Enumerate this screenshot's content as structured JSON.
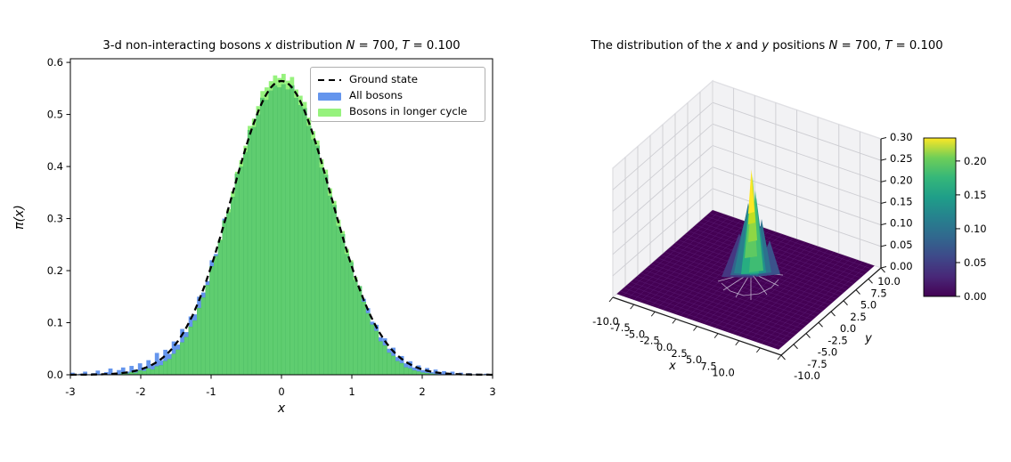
{
  "figure": {
    "background": "#ffffff"
  },
  "chart_data": [
    {
      "type": "bar",
      "subtype": "histogram-with-line",
      "title_segments": [
        {
          "text": "3-d non-interacting bosons ",
          "italic": false
        },
        {
          "text": "x",
          "italic": true
        },
        {
          "text": " distribution ",
          "italic": false
        },
        {
          "text": "N",
          "italic": true
        },
        {
          "text": " = 700, ",
          "italic": false
        },
        {
          "text": "T",
          "italic": true
        },
        {
          "text": " = 0.100",
          "italic": false
        }
      ],
      "xlabel": "x",
      "ylabel": "π(x)",
      "xlim": [
        -3,
        3
      ],
      "ylim": [
        0,
        0.607
      ],
      "xticks": [
        "-3",
        "-2",
        "-1",
        "0",
        "1",
        "2",
        "3"
      ],
      "yticks": [
        "0.0",
        "0.1",
        "0.2",
        "0.3",
        "0.4",
        "0.5",
        "0.6"
      ],
      "bin_start": -3.0,
      "bin_width": 0.06,
      "series": [
        {
          "name": "All bosons",
          "color": "#6495ED",
          "values": [
            0.004,
            0.001,
            0.002,
            0.006,
            0.001,
            0.003,
            0.008,
            0.002,
            0.005,
            0.012,
            0.003,
            0.009,
            0.014,
            0.006,
            0.017,
            0.01,
            0.022,
            0.014,
            0.028,
            0.02,
            0.042,
            0.028,
            0.048,
            0.04,
            0.064,
            0.058,
            0.088,
            0.082,
            0.112,
            0.116,
            0.15,
            0.158,
            0.18,
            0.22,
            0.232,
            0.258,
            0.3,
            0.312,
            0.342,
            0.386,
            0.4,
            0.428,
            0.47,
            0.476,
            0.5,
            0.532,
            0.528,
            0.546,
            0.556,
            0.552,
            0.558,
            0.548,
            0.556,
            0.532,
            0.518,
            0.512,
            0.478,
            0.452,
            0.44,
            0.398,
            0.384,
            0.344,
            0.326,
            0.286,
            0.27,
            0.232,
            0.216,
            0.182,
            0.17,
            0.146,
            0.128,
            0.102,
            0.096,
            0.072,
            0.07,
            0.05,
            0.052,
            0.034,
            0.036,
            0.022,
            0.026,
            0.014,
            0.018,
            0.009,
            0.013,
            0.005,
            0.01,
            0.003,
            0.007,
            0.002,
            0.006,
            0.001,
            0.004,
            0.001,
            0.003,
            0.001,
            0.002,
            0.001,
            0.002,
            0.001
          ]
        },
        {
          "name": "Bosons in longer cycle",
          "color_pure": "#96F27D",
          "color_over_blue": "#5FCD70",
          "values": [
            0,
            0,
            0,
            0,
            0,
            0,
            0,
            0,
            0,
            0,
            0,
            0,
            0.004,
            0.002,
            0.005,
            0.004,
            0.008,
            0.007,
            0.012,
            0.01,
            0.016,
            0.018,
            0.026,
            0.03,
            0.04,
            0.048,
            0.062,
            0.072,
            0.092,
            0.104,
            0.128,
            0.148,
            0.172,
            0.208,
            0.228,
            0.26,
            0.296,
            0.318,
            0.352,
            0.39,
            0.412,
            0.44,
            0.478,
            0.492,
            0.516,
            0.545,
            0.552,
            0.564,
            0.575,
            0.57,
            0.578,
            0.565,
            0.572,
            0.548,
            0.536,
            0.524,
            0.494,
            0.468,
            0.45,
            0.414,
            0.394,
            0.358,
            0.334,
            0.298,
            0.276,
            0.242,
            0.22,
            0.188,
            0.17,
            0.14,
            0.118,
            0.096,
            0.084,
            0.064,
            0.056,
            0.042,
            0.036,
            0.026,
            0.022,
            0.014,
            0.012,
            0.008,
            0.006,
            0.004,
            0.003,
            0.002,
            0.001,
            0,
            0,
            0,
            0,
            0,
            0,
            0,
            0,
            0,
            0,
            0,
            0,
            0
          ]
        }
      ],
      "curve": {
        "name": "Ground state",
        "color": "#000000",
        "style": "dashed",
        "shape": "gaussian",
        "peak": 0.5642,
        "sigma": 0.7071
      },
      "legend": [
        {
          "label": "Ground state",
          "sample": "dashed-black-line"
        },
        {
          "label": "All bosons",
          "sample": "blue-patch"
        },
        {
          "label": "Bosons in longer cycle",
          "sample": "green-patch"
        }
      ]
    },
    {
      "type": "surface",
      "title_segments": [
        {
          "text": "The distribution of the ",
          "italic": false
        },
        {
          "text": "x",
          "italic": true
        },
        {
          "text": " and ",
          "italic": false
        },
        {
          "text": "y",
          "italic": true
        },
        {
          "text": " positions ",
          "italic": false
        },
        {
          "text": "N",
          "italic": true
        },
        {
          "text": " = 700, ",
          "italic": false
        },
        {
          "text": "T",
          "italic": true
        },
        {
          "text": " = 0.100",
          "italic": false
        }
      ],
      "xlabel": "x",
      "ylabel": "y",
      "x_range": [
        -10,
        10
      ],
      "y_range": [
        -10,
        10
      ],
      "z_range": [
        0,
        0.3
      ],
      "xtick_labels": [
        "-10.0",
        "-7.5",
        "-5.0",
        "-2.5",
        "0.0",
        "2.5",
        "5.0",
        "7.5",
        "10.0"
      ],
      "ytick_labels": [
        "-10.0",
        "-7.5",
        "-5.0",
        "-2.5",
        "0.0",
        "2.5",
        "5.0",
        "7.5",
        "10.0"
      ],
      "ztick_labels": [
        "0.00",
        "0.05",
        "0.10",
        "0.15",
        "0.20",
        "0.25",
        "0.30"
      ],
      "surface": {
        "description": "flat plane at z=0 with sharp peak at origin",
        "peak": {
          "x": 0,
          "y": 0,
          "z": 0.234
        },
        "base_value": 0.0,
        "colormap": "viridis",
        "floor_color": "#440154"
      },
      "colormap_stops": [
        [
          "0",
          "#440154"
        ],
        [
          "0.125",
          "#482878"
        ],
        [
          "0.25",
          "#3e4989"
        ],
        [
          "0.375",
          "#31688e"
        ],
        [
          "0.5",
          "#26828e"
        ],
        [
          "0.625",
          "#1f9e89"
        ],
        [
          "0.75",
          "#35b779"
        ],
        [
          "0.875",
          "#6ece58"
        ],
        [
          "1",
          "#fde725"
        ]
      ],
      "colorbar": {
        "ticks": [
          "0.00",
          "0.05",
          "0.10",
          "0.15",
          "0.20"
        ],
        "vmax": 0.234
      }
    }
  ]
}
